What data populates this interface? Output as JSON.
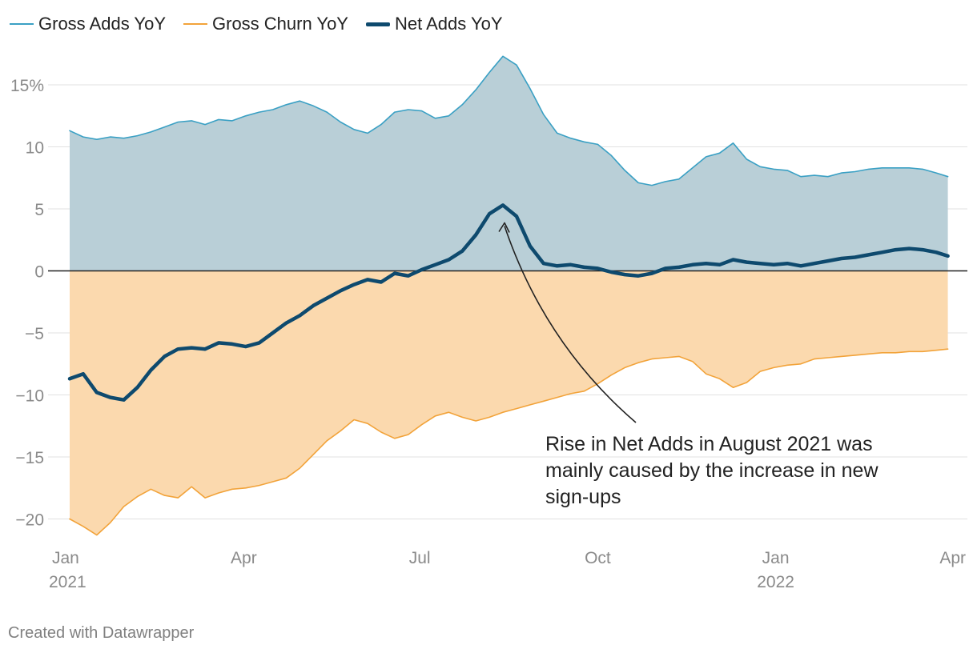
{
  "chart_data": {
    "type": "area",
    "title": "",
    "xlabel": "",
    "ylabel": "",
    "ylim": [
      -22,
      17.5
    ],
    "y_ticks": [
      15,
      10,
      5,
      0,
      -5,
      -10,
      -15,
      -20
    ],
    "y_tick_labels": [
      "15%",
      "10",
      "5",
      "0",
      "−5",
      "−10",
      "−15",
      "−20"
    ],
    "x_ticks": [
      {
        "x": "2021-01-01",
        "label": "Jan",
        "sublabel": "2021"
      },
      {
        "x": "2021-04-01",
        "label": "Apr",
        "sublabel": ""
      },
      {
        "x": "2021-07-01",
        "label": "Jul",
        "sublabel": ""
      },
      {
        "x": "2021-10-01",
        "label": "Oct",
        "sublabel": ""
      },
      {
        "x": "2022-01-01",
        "label": "Jan",
        "sublabel": "2022"
      },
      {
        "x": "2022-04-01",
        "label": "Apr",
        "sublabel": ""
      }
    ],
    "grid": true,
    "legend_position": "top-left",
    "x": [
      "2021-01-01",
      "2021-01-08",
      "2021-01-15",
      "2021-01-22",
      "2021-01-29",
      "2021-02-05",
      "2021-02-12",
      "2021-02-19",
      "2021-02-26",
      "2021-03-05",
      "2021-03-12",
      "2021-03-19",
      "2021-03-26",
      "2021-04-02",
      "2021-04-09",
      "2021-04-16",
      "2021-04-23",
      "2021-04-30",
      "2021-05-07",
      "2021-05-14",
      "2021-05-21",
      "2021-05-28",
      "2021-06-04",
      "2021-06-11",
      "2021-06-18",
      "2021-06-25",
      "2021-07-02",
      "2021-07-09",
      "2021-07-16",
      "2021-07-23",
      "2021-07-30",
      "2021-08-06",
      "2021-08-13",
      "2021-08-20",
      "2021-08-27",
      "2021-09-03",
      "2021-09-10",
      "2021-09-17",
      "2021-09-24",
      "2021-10-01",
      "2021-10-08",
      "2021-10-15",
      "2021-10-22",
      "2021-10-29",
      "2021-11-05",
      "2021-11-12",
      "2021-11-19",
      "2021-11-26",
      "2021-12-03",
      "2021-12-10",
      "2021-12-17",
      "2021-12-24",
      "2021-12-31",
      "2022-01-07",
      "2022-01-14",
      "2022-01-21",
      "2022-01-28",
      "2022-02-04",
      "2022-02-11",
      "2022-02-18",
      "2022-02-25",
      "2022-03-04",
      "2022-03-11",
      "2022-03-18",
      "2022-03-25",
      "2022-03-31"
    ],
    "series": [
      {
        "name": "Gross Adds YoY",
        "color": "#3aa0c4",
        "width": 1.6,
        "values": [
          11.3,
          10.8,
          10.6,
          10.8,
          10.7,
          10.9,
          11.2,
          11.6,
          12.0,
          12.1,
          11.8,
          12.2,
          12.1,
          12.5,
          12.8,
          13.0,
          13.4,
          13.7,
          13.3,
          12.8,
          12.0,
          11.4,
          11.1,
          11.8,
          12.8,
          13.0,
          12.9,
          12.3,
          12.5,
          13.4,
          14.6,
          16.0,
          17.3,
          16.6,
          14.7,
          12.6,
          11.1,
          10.7,
          10.4,
          10.2,
          9.3,
          8.1,
          7.1,
          6.9,
          7.2,
          7.4,
          8.3,
          9.2,
          9.5,
          10.3,
          9.0,
          8.4,
          8.2,
          8.1,
          7.6,
          7.7,
          7.6,
          7.9,
          8.0,
          8.2,
          8.3,
          8.3,
          8.3,
          8.2,
          7.9,
          7.6
        ]
      },
      {
        "name": "Gross Churn YoY",
        "color": "#f2a33a",
        "width": 1.6,
        "values": [
          -20.0,
          -20.6,
          -21.3,
          -20.3,
          -19.0,
          -18.2,
          -17.6,
          -18.1,
          -18.3,
          -17.4,
          -18.3,
          -17.9,
          -17.6,
          -17.5,
          -17.3,
          -17.0,
          -16.7,
          -15.9,
          -14.8,
          -13.7,
          -12.9,
          -12.0,
          -12.3,
          -13.0,
          -13.5,
          -13.2,
          -12.4,
          -11.7,
          -11.4,
          -11.8,
          -12.1,
          -11.8,
          -11.4,
          -11.1,
          -10.8,
          -10.5,
          -10.2,
          -9.9,
          -9.7,
          -9.1,
          -8.4,
          -7.8,
          -7.4,
          -7.1,
          -7.0,
          -6.9,
          -7.3,
          -8.3,
          -8.7,
          -9.4,
          -9.0,
          -8.1,
          -7.8,
          -7.6,
          -7.5,
          -7.1,
          -7.0,
          -6.9,
          -6.8,
          -6.7,
          -6.6,
          -6.6,
          -6.5,
          -6.5,
          -6.4,
          -6.3
        ]
      },
      {
        "name": "Net Adds YoY",
        "color": "#0e4a6e",
        "width": 4.5,
        "values": [
          -8.7,
          -8.3,
          -9.8,
          -10.2,
          -10.4,
          -9.4,
          -8.0,
          -6.9,
          -6.3,
          -6.2,
          -6.3,
          -5.8,
          -5.9,
          -6.1,
          -5.8,
          -5.0,
          -4.2,
          -3.6,
          -2.8,
          -2.2,
          -1.6,
          -1.1,
          -0.7,
          -0.9,
          -0.2,
          -0.4,
          0.1,
          0.5,
          0.9,
          1.6,
          2.9,
          4.6,
          5.3,
          4.4,
          2.0,
          0.6,
          0.4,
          0.5,
          0.3,
          0.2,
          -0.1,
          -0.3,
          -0.4,
          -0.2,
          0.2,
          0.3,
          0.5,
          0.6,
          0.5,
          0.9,
          0.7,
          0.6,
          0.5,
          0.6,
          0.4,
          0.6,
          0.8,
          1.0,
          1.1,
          1.3,
          1.5,
          1.7,
          1.8,
          1.7,
          1.5,
          1.2
        ]
      }
    ],
    "areas": [
      {
        "series": "Gross Adds YoY",
        "fill": "#b9cfd7"
      },
      {
        "series": "Gross Churn YoY",
        "fill": "#fbd9ae"
      }
    ],
    "annotation": {
      "lines": [
        "Rise in Net Adds in August 2021 was",
        "mainly caused by the increase in new",
        "sign-ups"
      ],
      "point_x": "2021-08-13",
      "point_y": 4.0
    }
  },
  "footer": "Created with Datawrapper"
}
